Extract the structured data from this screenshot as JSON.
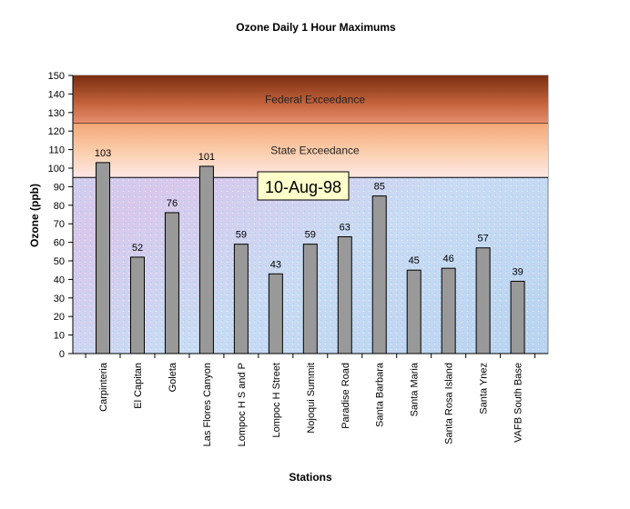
{
  "chart_data": {
    "type": "bar",
    "title": "Ozone Daily 1 Hour Maximums",
    "xlabel": "Stations",
    "ylabel": "Ozone (ppb)",
    "ylim": [
      0,
      150
    ],
    "ytick_step": 10,
    "grid": false,
    "legend": "none",
    "categories": [
      "Carpinteria",
      "El Capitan",
      "Goleta",
      "Las Flores Canyon",
      "Lompoc H S and P",
      "Lompoc H Street",
      "Nojoqui Summit",
      "Paradise Road",
      "Santa Barbara",
      "Santa Maria",
      "Santa Rosa Island",
      "Santa Ynez",
      "VAFB South Base"
    ],
    "values": [
      103,
      52,
      76,
      101,
      59,
      43,
      59,
      63,
      85,
      45,
      46,
      57,
      39
    ],
    "bar_color": "#999999",
    "bands": [
      {
        "label": "Federal Exceedance",
        "from": 124,
        "to": 150
      },
      {
        "label": "State Exceedance",
        "from": 95,
        "to": 124
      }
    ],
    "annotation": "10-Aug-98"
  }
}
